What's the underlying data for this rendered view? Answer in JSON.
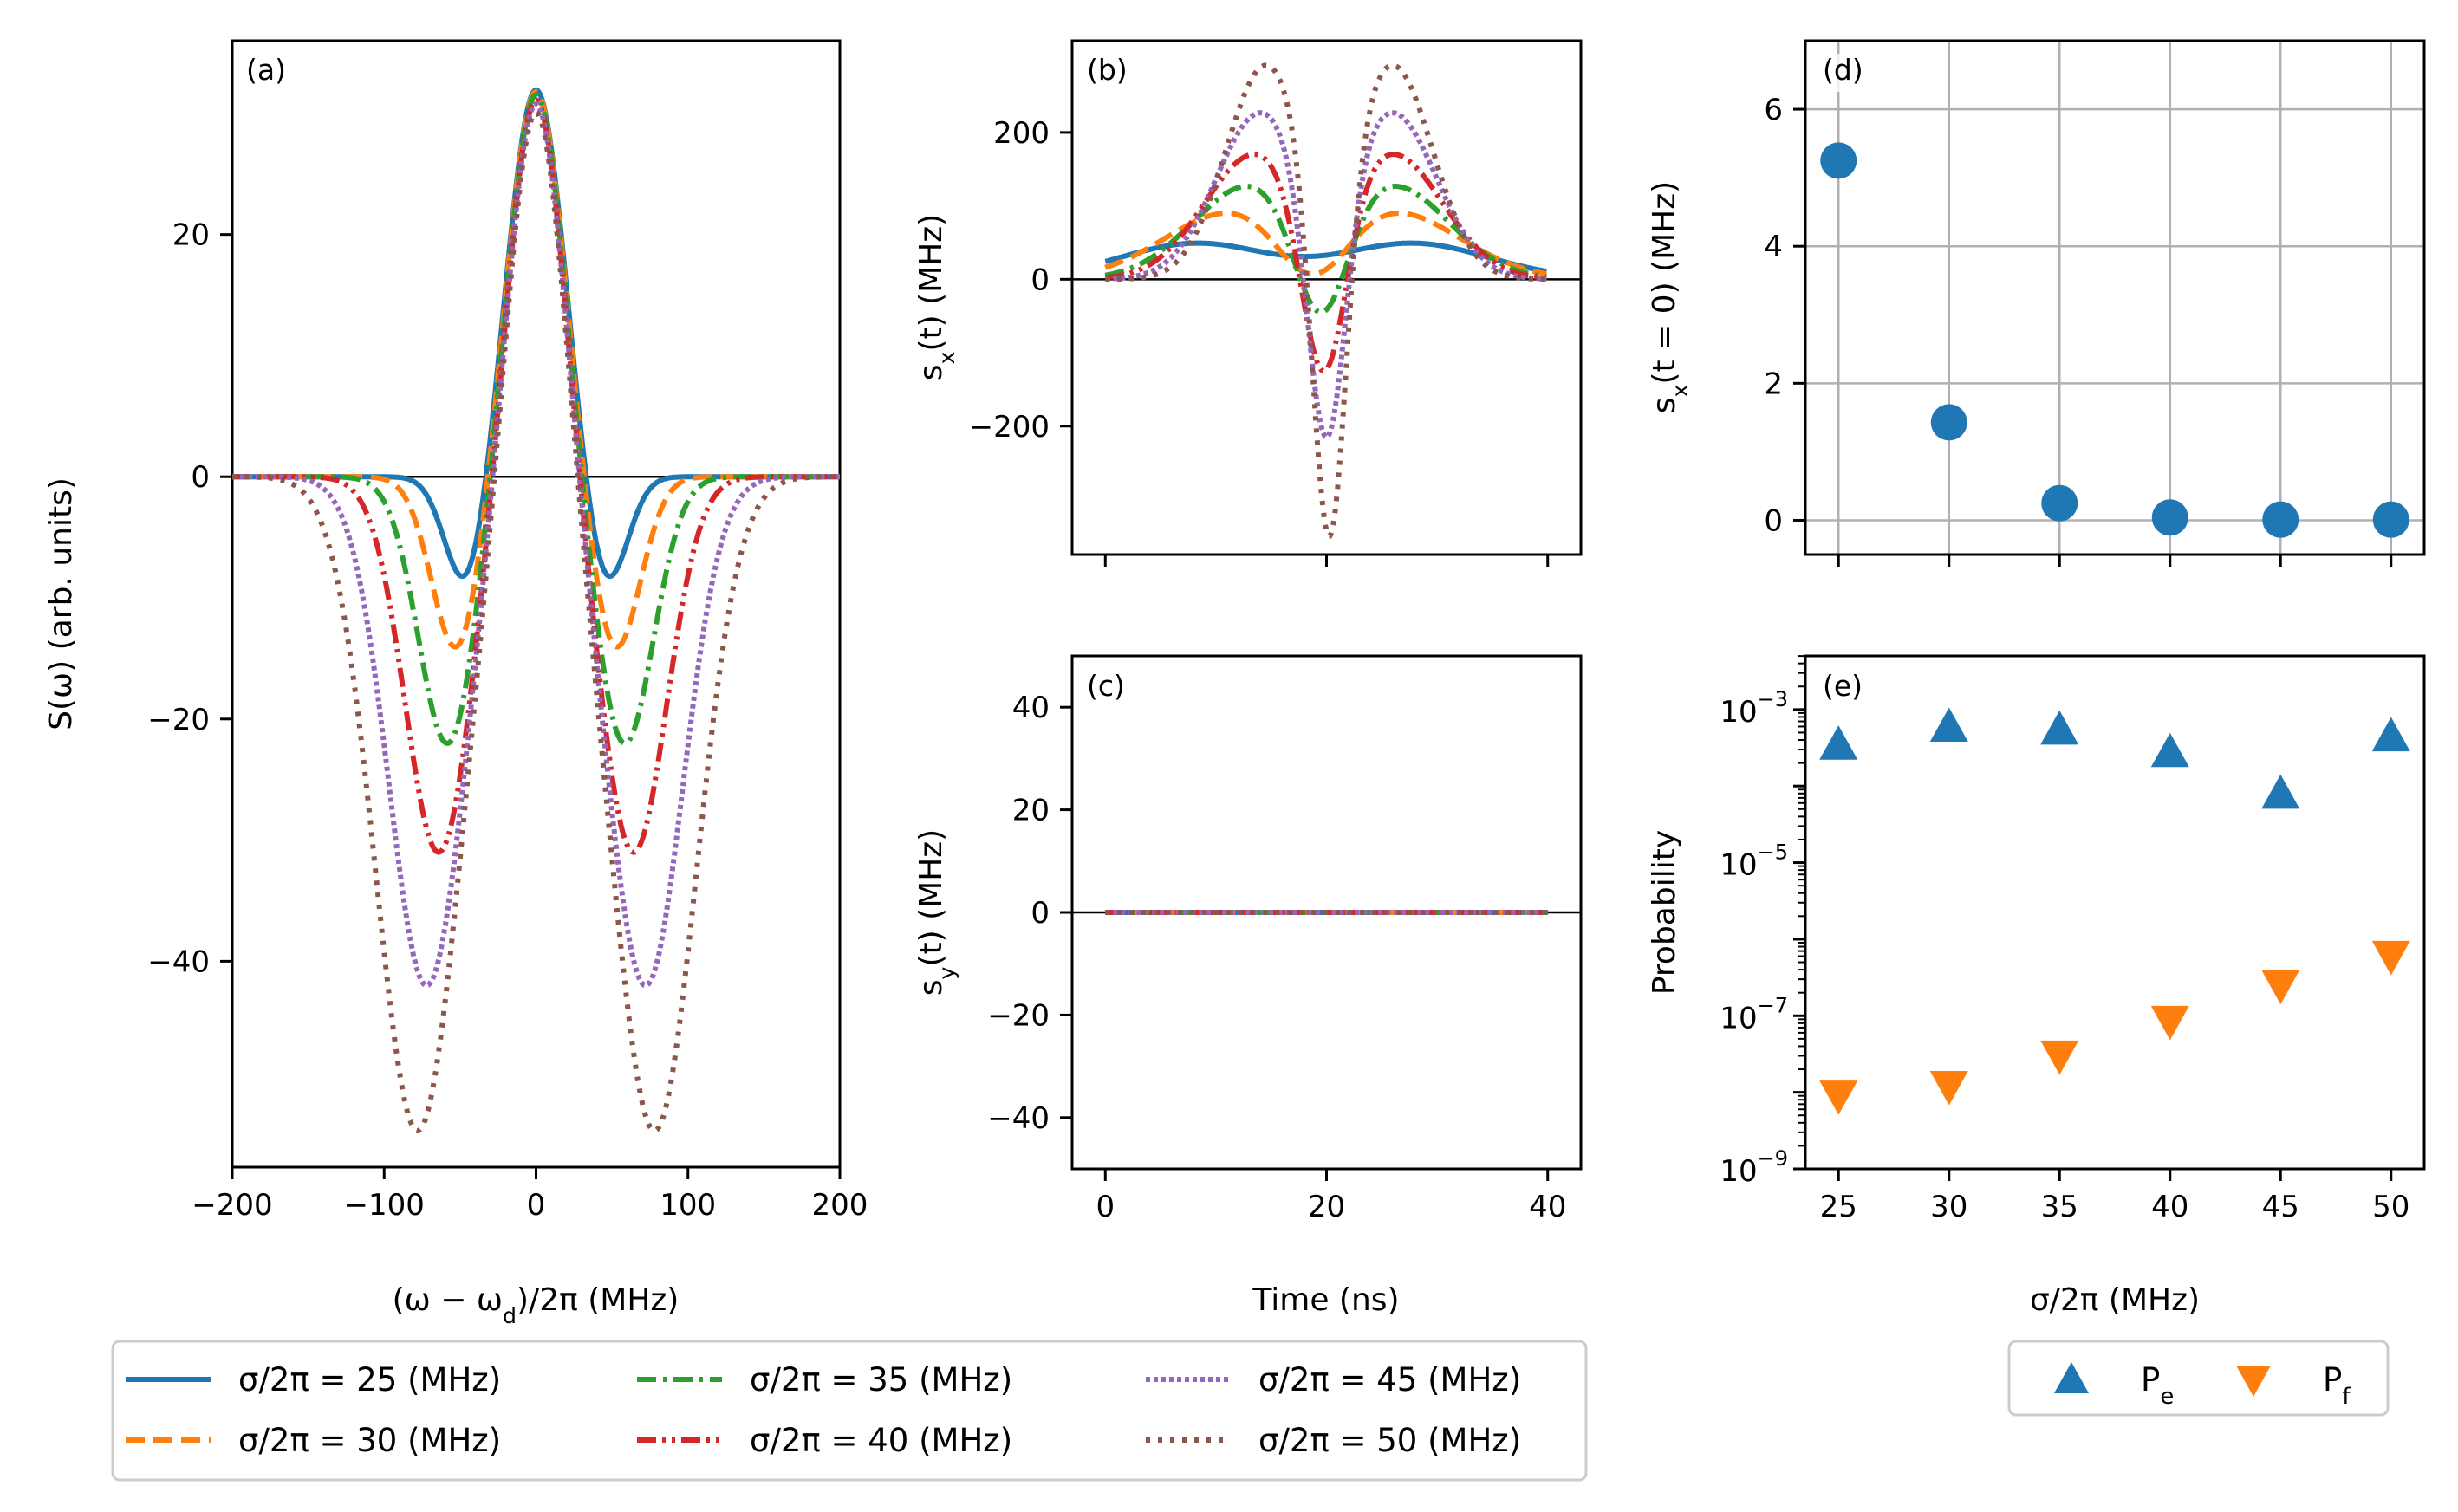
{
  "colors": {
    "c25": "#1f77b4",
    "c30": "#ff7f0e",
    "c35": "#2ca02c",
    "c40": "#d62728",
    "c45": "#9467bd",
    "c50": "#8c564b",
    "grid": "#b0b0b0"
  },
  "labels": {
    "xlabel_freq": "(ω − ω_d)/2π (MHz)",
    "xlabel_time": "Time (ns)",
    "xlabel_sigma": "σ/2π (MHz)",
    "ylabel_S": "S(ω) (arb. units)",
    "ylabel_sx": "s_x(t) (MHz)",
    "ylabel_sy": "s_y(t) (MHz)",
    "ylabel_sx0": "s_x(t = 0) (MHz)",
    "ylabel_prob": "Probability"
  },
  "legend_main": [
    {
      "label": "σ/2π = 25 (MHz)",
      "style": "solid",
      "color": "#1f77b4"
    },
    {
      "label": "σ/2π = 30 (MHz)",
      "style": "dashed",
      "color": "#ff7f0e"
    },
    {
      "label": "σ/2π = 35 (MHz)",
      "style": "dashdot",
      "color": "#2ca02c"
    },
    {
      "label": "σ/2π = 40 (MHz)",
      "style": "dashdotdot",
      "color": "#d62728"
    },
    {
      "label": "σ/2π = 45 (MHz)",
      "style": "densedot",
      "color": "#9467bd"
    },
    {
      "label": "σ/2π = 50 (MHz)",
      "style": "dotted",
      "color": "#8c564b"
    }
  ],
  "legend_prob": [
    {
      "label": "P_e",
      "marker": "triangle-up",
      "color": "#1f77b4"
    },
    {
      "label": "P_f",
      "marker": "triangle-down",
      "color": "#ff7f0e"
    }
  ],
  "chart_data": [
    {
      "panel": "(a)",
      "type": "line",
      "xlim": [
        -200,
        200
      ],
      "ylim": [
        -57,
        36
      ],
      "xticks": [
        -200,
        -100,
        0,
        100,
        200
      ],
      "xticklabels": [
        "−200",
        "−100",
        "0",
        "100",
        "200"
      ],
      "yticks": [
        -40,
        -20,
        0,
        20
      ],
      "yticklabels": [
        "−40",
        "−20",
        "0",
        "20"
      ],
      "hline": 0,
      "peak": {
        "x": 0,
        "y": 32
      },
      "series": [
        {
          "name": "σ/2π = 25 (MHz)",
          "sigma": 25,
          "min_at": [
            -46,
            46
          ],
          "min_value": -8
        },
        {
          "name": "σ/2π = 30 (MHz)",
          "sigma": 30,
          "min_at": [
            -52,
            52
          ],
          "min_value": -14
        },
        {
          "name": "σ/2π = 35 (MHz)",
          "sigma": 35,
          "min_at": [
            -58,
            58
          ],
          "min_value": -22
        },
        {
          "name": "σ/2π = 40 (MHz)",
          "sigma": 40,
          "min_at": [
            -64,
            64
          ],
          "min_value": -31
        },
        {
          "name": "σ/2π = 45 (MHz)",
          "sigma": 45,
          "min_at": [
            -72,
            72
          ],
          "min_value": -42
        },
        {
          "name": "σ/2π = 50 (MHz)",
          "sigma": 50,
          "min_at": [
            -78,
            78
          ],
          "min_value": -54
        }
      ]
    },
    {
      "panel": "(b)",
      "type": "line",
      "xlim": [
        -3,
        43
      ],
      "ylim": [
        -375,
        325
      ],
      "xticks": [
        0,
        20,
        40
      ],
      "yticks": [
        -200,
        0,
        200
      ],
      "yticklabels": [
        "−200",
        "0",
        "200"
      ],
      "hline": 0,
      "series": [
        {
          "name": "σ/2π = 25 (MHz)",
          "peak_times": [
            10,
            26
          ],
          "peak": 62,
          "center": 31
        },
        {
          "name": "σ/2π = 30 (MHz)",
          "peak_times": [
            11.5,
            26
          ],
          "peak": 90,
          "center": 7
        },
        {
          "name": "σ/2π = 35 (MHz)",
          "peak_times": [
            13,
            26
          ],
          "peak": 125,
          "center": -45
        },
        {
          "name": "σ/2π = 40 (MHz)",
          "peak_times": [
            13.5,
            26
          ],
          "peak": 168,
          "center": -125
        },
        {
          "name": "σ/2π = 45 (MHz)",
          "peak_times": [
            14,
            26
          ],
          "peak": 225,
          "center": -215
        },
        {
          "name": "σ/2π = 50 (MHz)",
          "peak_times": [
            14.5,
            26
          ],
          "peak": 290,
          "center": -350
        }
      ]
    },
    {
      "panel": "(c)",
      "type": "line",
      "xlim": [
        -3,
        43
      ],
      "ylim": [
        -50,
        50
      ],
      "xticks": [
        0,
        20,
        40
      ],
      "xticklabels": [
        "0",
        "20",
        "40"
      ],
      "yticks": [
        -40,
        -20,
        0,
        20,
        40
      ],
      "yticklabels": [
        "−40",
        "−20",
        "0",
        "20",
        "40"
      ],
      "series_value": 0,
      "t_range": [
        0,
        40
      ]
    },
    {
      "panel": "(d)",
      "type": "scatter",
      "xlim": [
        23.5,
        51.5
      ],
      "ylim": [
        -0.5,
        7
      ],
      "x": [
        25,
        30,
        35,
        40,
        45,
        50
      ],
      "y": [
        5.25,
        1.43,
        0.25,
        0.04,
        0.01,
        0.01
      ],
      "yticks": [
        0,
        2,
        4,
        6
      ],
      "grid": true
    },
    {
      "panel": "(e)",
      "type": "scatter",
      "yscale": "log",
      "xlim": [
        23.5,
        51.5
      ],
      "ylim_exp": [
        -9,
        -2.3
      ],
      "x": [
        25,
        30,
        35,
        40,
        45,
        50
      ],
      "xticks": [
        25,
        30,
        35,
        40,
        45,
        50
      ],
      "xticklabels": [
        "25",
        "30",
        "35",
        "40",
        "45",
        "50"
      ],
      "series": [
        {
          "name": "P_e",
          "y": [
            0.00035,
            0.0006,
            0.00055,
            0.00028,
            8e-05,
            0.00045
          ]
        },
        {
          "name": "P_f",
          "y": [
            9e-09,
            1.2e-08,
            3e-08,
            8.5e-08,
            2.5e-07,
            6e-07
          ]
        }
      ],
      "yticks_exp": [
        -9,
        -7,
        -5,
        -3
      ]
    }
  ]
}
